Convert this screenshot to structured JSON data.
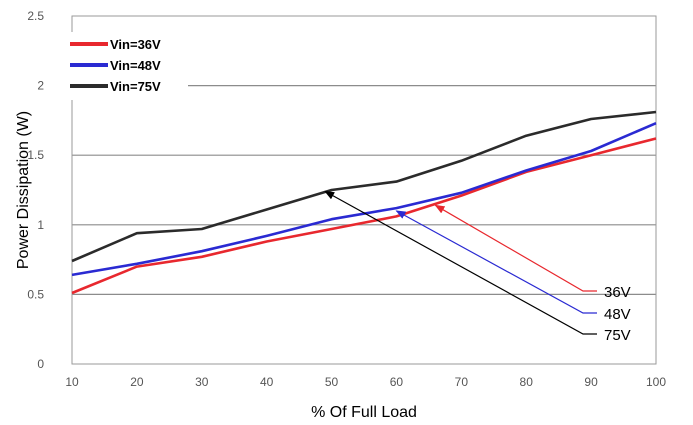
{
  "chart_data": {
    "type": "line",
    "title": "",
    "xlabel": "% Of Full Load",
    "ylabel": "Power Dissipation (W)",
    "xlim": [
      10,
      100
    ],
    "ylim": [
      0,
      2.5
    ],
    "xticks": [
      10,
      20,
      30,
      40,
      50,
      60,
      70,
      80,
      90,
      100
    ],
    "yticks": [
      0,
      0.5,
      1,
      1.5,
      2,
      2.5
    ],
    "ytick_labels": [
      "0",
      "0.5",
      "1",
      "1.5",
      "2",
      "2.5"
    ],
    "grid": "horizontal",
    "legend_position": "top-left",
    "series": [
      {
        "name": "Vin=36V",
        "color": "#e8282e",
        "x": [
          10,
          20,
          30,
          40,
          50,
          60,
          70,
          80,
          90,
          100
        ],
        "y": [
          0.51,
          0.7,
          0.77,
          0.88,
          0.97,
          1.06,
          1.21,
          1.38,
          1.5,
          1.62
        ]
      },
      {
        "name": "Vin=48V",
        "color": "#2a2ad2",
        "x": [
          10,
          20,
          30,
          40,
          50,
          60,
          70,
          80,
          90,
          100
        ],
        "y": [
          0.64,
          0.72,
          0.81,
          0.92,
          1.04,
          1.12,
          1.23,
          1.39,
          1.53,
          1.73
        ]
      },
      {
        "name": "Vin=75V",
        "color": "#2b2b2b",
        "x": [
          10,
          20,
          30,
          40,
          50,
          60,
          70,
          80,
          90,
          100
        ],
        "y": [
          0.74,
          0.94,
          0.97,
          1.11,
          1.25,
          1.31,
          1.46,
          1.64,
          1.76,
          1.81
        ]
      }
    ],
    "annotations": [
      {
        "label": "36V",
        "color": "#e8282e",
        "target": [
          66,
          1.14
        ]
      },
      {
        "label": "48V",
        "color": "#2a2ad2",
        "target": [
          60,
          1.1
        ]
      },
      {
        "label": "75V",
        "color": "#000000",
        "target": [
          49,
          1.24
        ]
      }
    ]
  }
}
